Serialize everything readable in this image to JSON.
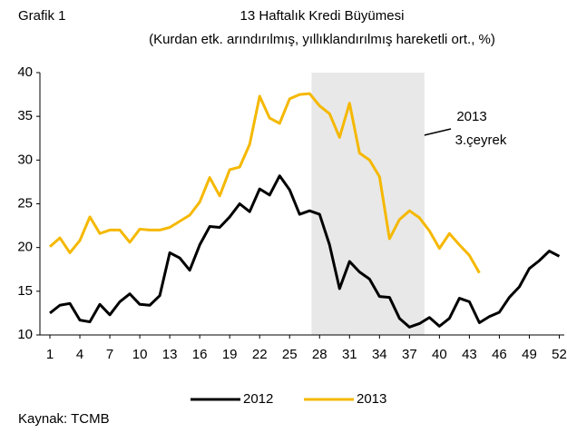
{
  "chart_data": {
    "type": "line",
    "label": "Grafik 1",
    "title": "13 Haftalık Kredi Büyümesi",
    "subtitle": "(Kurdan etk. arındırılmış, yıllıklandırılmış hareketli ort., %)",
    "source": "Kaynak: TCMB",
    "annotation": [
      "2013",
      "3.çeyrek"
    ],
    "shaded_range": [
      27.2,
      38.5
    ],
    "x": [
      1,
      2,
      3,
      4,
      5,
      6,
      7,
      8,
      9,
      10,
      11,
      12,
      13,
      14,
      15,
      16,
      17,
      18,
      19,
      20,
      21,
      22,
      23,
      24,
      25,
      26,
      27,
      28,
      29,
      30,
      31,
      32,
      33,
      34,
      35,
      36,
      37,
      38,
      39,
      40,
      41,
      42,
      43,
      44,
      45,
      46,
      47,
      48,
      49,
      50,
      51,
      52
    ],
    "xlim": [
      0,
      52.5
    ],
    "xticks": [
      1,
      4,
      7,
      10,
      13,
      16,
      19,
      22,
      25,
      28,
      31,
      34,
      37,
      40,
      43,
      46,
      49,
      52
    ],
    "ylim": [
      10,
      40
    ],
    "yticks": [
      10,
      15,
      20,
      25,
      30,
      35,
      40
    ],
    "legend": "bottom",
    "series": [
      {
        "name": "2012",
        "color": "#000000",
        "values": [
          12.5,
          13.4,
          13.6,
          11.7,
          11.5,
          13.5,
          12.3,
          13.8,
          14.7,
          13.5,
          13.4,
          14.5,
          19.4,
          18.8,
          17.4,
          20.3,
          22.4,
          22.3,
          23.5,
          25.0,
          24.1,
          26.7,
          26.0,
          28.2,
          26.6,
          23.8,
          24.2,
          23.8,
          20.3,
          15.3,
          18.4,
          17.2,
          16.4,
          14.4,
          14.3,
          11.9,
          10.9,
          11.3,
          12.0,
          11.0,
          11.9,
          14.2,
          13.8,
          11.4,
          12.1,
          12.6,
          14.3,
          15.5,
          17.6,
          18.5,
          19.6,
          19.0
        ]
      },
      {
        "name": "2013",
        "color": "#f5b800",
        "values": [
          20.1,
          21.1,
          19.4,
          20.8,
          23.5,
          21.6,
          22.0,
          22.0,
          20.6,
          22.1,
          22.0,
          22.0,
          22.3,
          23.0,
          23.7,
          25.2,
          28.0,
          25.9,
          28.9,
          29.2,
          31.8,
          37.3,
          34.8,
          34.2,
          37.0,
          37.5,
          37.6,
          36.2,
          35.3,
          32.6,
          36.5,
          30.8,
          30.0,
          28.1,
          21.0,
          23.2,
          24.2,
          23.4,
          21.9,
          19.9,
          21.6,
          20.3,
          19.1,
          17.1,
          null,
          null,
          null,
          null,
          null,
          null,
          null,
          null
        ]
      }
    ]
  }
}
